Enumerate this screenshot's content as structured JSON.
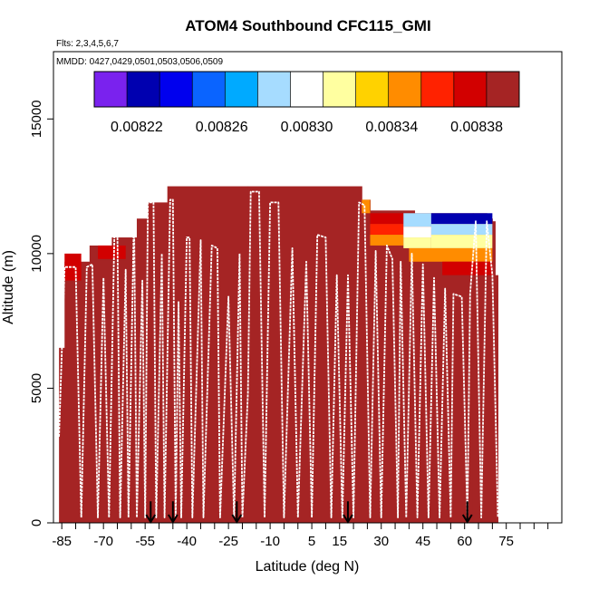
{
  "chart_data": {
    "type": "heatmap",
    "title": "ATOM4 Southbound CFC115_GMI",
    "subtitle_flights": "Flts: 2,3,4,5,6,7",
    "subtitle_dates": "MMDD: 0427,0429,0501,0503,0506,0509",
    "xlabel": "Latitude (deg N)",
    "ylabel": "Altitude (m)",
    "xlim": [
      -88,
      95
    ],
    "ylim": [
      0,
      17500
    ],
    "x_tick_labels": [
      "-85",
      "-70",
      "-55",
      "-40",
      "-25",
      "-10",
      "5",
      "15",
      "30",
      "45",
      "60",
      "75"
    ],
    "x_tick_values": [
      -85,
      -70,
      -55,
      -40,
      -25,
      -10,
      5,
      15,
      30,
      45,
      60,
      75
    ],
    "x_minor_ticks": [
      -80,
      -75,
      -65,
      -60,
      -50,
      -45,
      -35,
      -30,
      -20,
      -15,
      -5,
      0,
      10,
      20,
      25,
      35,
      40,
      50,
      55,
      65,
      70,
      80,
      85,
      90
    ],
    "y_tick_labels": [
      "0",
      "5000",
      "10000",
      "15000"
    ],
    "y_tick_values": [
      0,
      5000,
      10000,
      15000
    ],
    "colorbar": {
      "min": 0.0082,
      "max": 0.0084,
      "tick_labels": [
        "0.00822",
        "0.00826",
        "0.00830",
        "0.00834",
        "0.00838"
      ],
      "tick_values": [
        0.00822,
        0.00826,
        0.0083,
        0.00834,
        0.00838
      ],
      "colors": [
        "#7a22ee",
        "#0000b0",
        "#0000ee",
        "#0a64ff",
        "#00aaff",
        "#a6dcff",
        "#ffffff",
        "#ffffa0",
        "#ffd200",
        "#ff8c00",
        "#ff2200",
        "#d20000",
        "#a52424"
      ]
    },
    "field": {
      "background_value": 0.00839,
      "columns": [
        {
          "lat": -86,
          "top": 6500
        },
        {
          "lat": -84,
          "top": 9700
        },
        {
          "lat": -75,
          "top": 10300
        },
        {
          "lat": -67,
          "top": 10600
        },
        {
          "lat": -58,
          "top": 11300
        },
        {
          "lat": -54,
          "top": 11900
        },
        {
          "lat": -47,
          "top": 12500
        },
        {
          "lat": -18,
          "top": 12500
        },
        {
          "lat": 23,
          "top": 12000
        },
        {
          "lat": 26,
          "top": 11600
        },
        {
          "lat": 42,
          "top": 11500
        },
        {
          "lat": 63,
          "top": 11500
        },
        {
          "lat": 68,
          "top": 11300
        },
        {
          "lat": 70,
          "top": 11200
        },
        {
          "lat": 71,
          "top": 9200
        },
        {
          "lat": 72,
          "top": 7000
        }
      ],
      "anomalies": [
        {
          "lat0": -84,
          "lat1": -78,
          "alt0": 9500,
          "alt1": 10000,
          "value": 0.00837
        },
        {
          "lat0": -84,
          "lat1": -78,
          "alt0": 9000,
          "alt1": 9500,
          "value": 0.00838
        },
        {
          "lat0": -72,
          "lat1": -62,
          "alt0": 9800,
          "alt1": 10300,
          "value": 0.00837
        },
        {
          "lat0": 23,
          "lat1": 26,
          "alt0": 11500,
          "alt1": 12000,
          "value": 0.00835
        },
        {
          "lat0": 26,
          "lat1": 38,
          "alt0": 11100,
          "alt1": 11500,
          "value": 0.00837
        },
        {
          "lat0": 26,
          "lat1": 38,
          "alt0": 10700,
          "alt1": 11100,
          "value": 0.00836
        },
        {
          "lat0": 26,
          "lat1": 38,
          "alt0": 10300,
          "alt1": 10700,
          "value": 0.00835
        },
        {
          "lat0": 38,
          "lat1": 48,
          "alt0": 11000,
          "alt1": 11500,
          "value": 0.00829
        },
        {
          "lat0": 38,
          "lat1": 48,
          "alt0": 10600,
          "alt1": 11000,
          "value": 0.0083
        },
        {
          "lat0": 38,
          "lat1": 48,
          "alt0": 10200,
          "alt1": 10600,
          "value": 0.00832
        },
        {
          "lat0": 48,
          "lat1": 70,
          "alt0": 11100,
          "alt1": 11500,
          "value": 0.00823
        },
        {
          "lat0": 48,
          "lat1": 70,
          "alt0": 10700,
          "alt1": 11100,
          "value": 0.00828
        },
        {
          "lat0": 48,
          "lat1": 70,
          "alt0": 10200,
          "alt1": 10700,
          "value": 0.00832
        },
        {
          "lat0": 40,
          "lat1": 70,
          "alt0": 9700,
          "alt1": 10200,
          "value": 0.00835
        },
        {
          "lat0": 52,
          "lat1": 70,
          "alt0": 9200,
          "alt1": 9700,
          "value": 0.00837
        }
      ]
    },
    "flight_track": [
      [
        -86,
        3200
      ],
      [
        -84,
        9500
      ],
      [
        -80,
        9500
      ],
      [
        -78,
        200
      ],
      [
        -76,
        9500
      ],
      [
        -74,
        9600
      ],
      [
        -72,
        200
      ],
      [
        -70,
        9100
      ],
      [
        -68,
        200
      ],
      [
        -66,
        11000
      ],
      [
        -65,
        11000
      ],
      [
        -64,
        200
      ],
      [
        -62,
        9400
      ],
      [
        -61,
        200
      ],
      [
        -59,
        11500
      ],
      [
        -58,
        200
      ],
      [
        -56,
        9000
      ],
      [
        -55,
        200
      ],
      [
        -54,
        11900
      ],
      [
        -52,
        11900
      ],
      [
        -51,
        200
      ],
      [
        -49,
        10000
      ],
      [
        -48,
        200
      ],
      [
        -46,
        12000
      ],
      [
        -45,
        12000
      ],
      [
        -44,
        200
      ],
      [
        -43,
        8200
      ],
      [
        -42,
        200
      ],
      [
        -40,
        10600
      ],
      [
        -39,
        10600
      ],
      [
        -38,
        200
      ],
      [
        -35,
        10500
      ],
      [
        -34,
        200
      ],
      [
        -31,
        10300
      ],
      [
        -29,
        10200
      ],
      [
        -28,
        200
      ],
      [
        -25,
        8400
      ],
      [
        -23,
        200
      ],
      [
        -21,
        10000
      ],
      [
        -20,
        200
      ],
      [
        -18,
        4800
      ],
      [
        -17,
        12300
      ],
      [
        -14,
        12300
      ],
      [
        -12,
        200
      ],
      [
        -10,
        11900
      ],
      [
        -7,
        11900
      ],
      [
        -5,
        200
      ],
      [
        -2,
        10200
      ],
      [
        0,
        200
      ],
      [
        3,
        9700
      ],
      [
        5,
        200
      ],
      [
        7,
        10700
      ],
      [
        10,
        10600
      ],
      [
        12,
        200
      ],
      [
        14,
        9200
      ],
      [
        16,
        200
      ],
      [
        18,
        9200
      ],
      [
        20,
        200
      ],
      [
        22,
        11900
      ],
      [
        24,
        11800
      ],
      [
        26,
        200
      ],
      [
        28,
        10100
      ],
      [
        30,
        200
      ],
      [
        32,
        10300
      ],
      [
        34,
        9800
      ],
      [
        36,
        200
      ],
      [
        37,
        9700
      ],
      [
        39,
        200
      ],
      [
        41,
        10000
      ],
      [
        43,
        200
      ],
      [
        45,
        9600
      ],
      [
        47,
        200
      ],
      [
        49,
        9100
      ],
      [
        51,
        200
      ],
      [
        53,
        8700
      ],
      [
        55,
        200
      ],
      [
        56,
        8500
      ],
      [
        59,
        8400
      ],
      [
        61,
        200
      ],
      [
        62,
        8500
      ],
      [
        64,
        11200
      ],
      [
        66,
        200
      ],
      [
        68,
        11200
      ],
      [
        70,
        9200
      ],
      [
        72,
        200
      ]
    ],
    "markers_lat": [
      -53,
      -45,
      -22,
      18,
      61
    ],
    "marker_alt_top": 800,
    "marker_alt_bottom": 0
  }
}
